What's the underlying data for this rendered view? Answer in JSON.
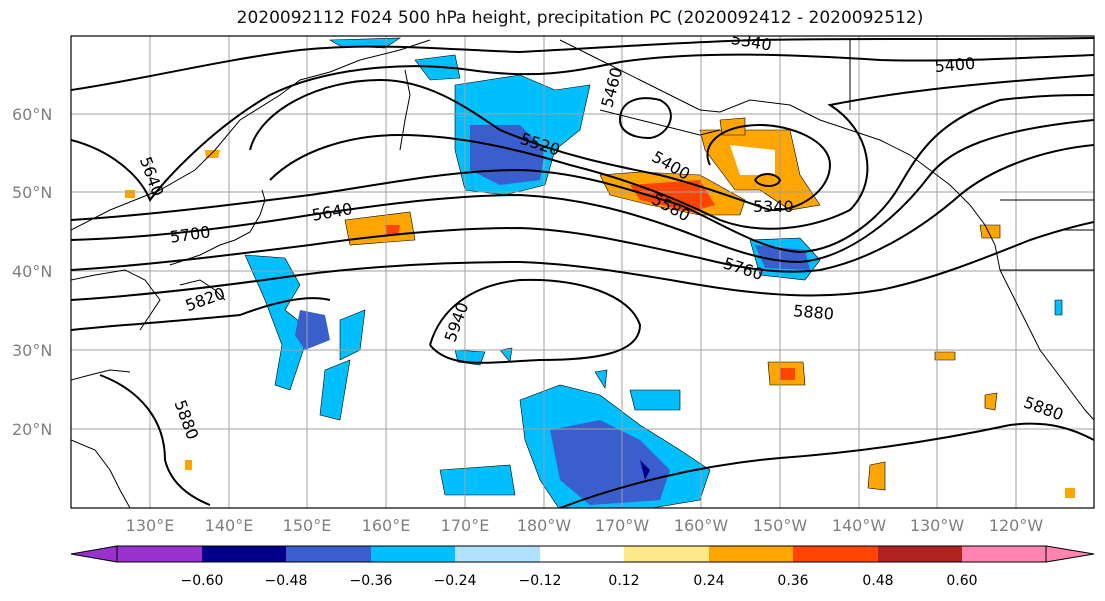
{
  "title": "2020092112 F024 500 hPa height, precipitation PC (2020092412 - 2020092512)",
  "lat_labels": [
    "60°N",
    "50°N",
    "40°N",
    "30°N",
    "20°N"
  ],
  "lon_labels": [
    "130°E",
    "140°E",
    "150°E",
    "160°E",
    "170°E",
    "180°W",
    "170°W",
    "160°W",
    "150°W",
    "140°W",
    "130°W",
    "120°W"
  ],
  "contour_labels": [
    "5340",
    "5400",
    "5460",
    "5520",
    "5400",
    "5580",
    "5340",
    "5640",
    "5640",
    "5700",
    "5760",
    "5820",
    "5880",
    "5940",
    "5880",
    "5880"
  ],
  "colorbar": {
    "ticks": [
      "−0.60",
      "−0.48",
      "−0.36",
      "−0.24",
      "−0.12",
      "0.12",
      "0.24",
      "0.36",
      "0.48",
      "0.60"
    ],
    "colors": [
      "#9932CC",
      "#00008B",
      "#3A5FCD",
      "#00BFFF",
      "#B0E2FF",
      "#FFFFFF",
      "#FFE88A",
      "#FFA500",
      "#FF4500",
      "#B22222",
      "#FF85B0"
    ]
  }
}
